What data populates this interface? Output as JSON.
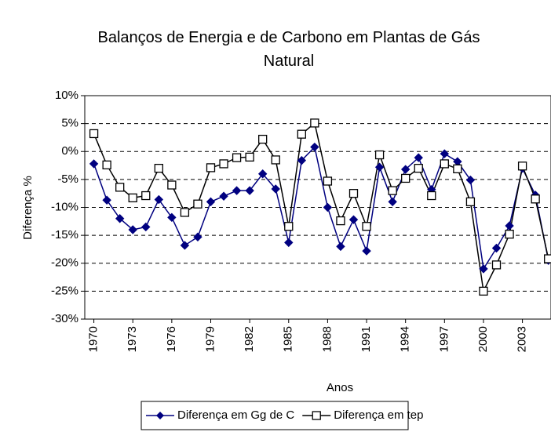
{
  "chart_data": {
    "type": "line",
    "title": "Balanços de Energia e de Carbono em Plantas de Gás Natural",
    "xlabel": "Anos",
    "ylabel": "Diferença %",
    "x": [
      1970,
      1971,
      1972,
      1973,
      1974,
      1975,
      1976,
      1977,
      1978,
      1979,
      1980,
      1981,
      1982,
      1983,
      1984,
      1985,
      1986,
      1987,
      1988,
      1989,
      1990,
      1991,
      1992,
      1993,
      1994,
      1995,
      1996,
      1997,
      1998,
      1999,
      2000,
      2001,
      2002,
      2003,
      2004,
      2005
    ],
    "xlim": [
      1969.3,
      2005.2
    ],
    "xticks": [
      1970,
      1973,
      1976,
      1979,
      1982,
      1985,
      1988,
      1991,
      1994,
      1997,
      2000,
      2003
    ],
    "ylim": [
      -30,
      10
    ],
    "yticks": [
      {
        "value": 10,
        "label": "10%"
      },
      {
        "value": 5,
        "label": "5%"
      },
      {
        "value": 0,
        "label": "0%"
      },
      {
        "value": -5,
        "label": "-5%"
      },
      {
        "value": -10,
        "label": "-10%"
      },
      {
        "value": -15,
        "label": "-15%"
      },
      {
        "value": -20,
        "label": "-20%"
      },
      {
        "value": -25,
        "label": "-25%"
      },
      {
        "value": -30,
        "label": "-30%"
      }
    ],
    "grid": true,
    "series": [
      {
        "name": "Diferença em Gg de C",
        "color": "#000080",
        "marker": "diamond",
        "values": [
          -2.2,
          -8.7,
          -12,
          -14,
          -13.5,
          -8.6,
          -11.8,
          -16.8,
          -15.3,
          -9,
          -8,
          -7,
          -7,
          -4,
          -6.7,
          -16.3,
          -1.6,
          0.8,
          -10,
          -17,
          -12.2,
          -17.8,
          -2.8,
          -9,
          -3.2,
          -1.1,
          -6.8,
          -0.4,
          -1.8,
          -5.1,
          -21,
          -17.3,
          -13.3,
          -3,
          -7.8,
          -19.5
        ]
      },
      {
        "name": "Diferença em tep",
        "color": "#000000",
        "marker": "square",
        "values": [
          3.2,
          -2.4,
          -6.4,
          -8.3,
          -7.9,
          -3,
          -6,
          -10.9,
          -9.4,
          -2.9,
          -2.2,
          -1.1,
          -1,
          2.2,
          -1.5,
          -13.4,
          3.1,
          5.1,
          -5.3,
          -12.4,
          -7.5,
          -13.4,
          -0.6,
          -7,
          -4.8,
          -3,
          -7.9,
          -2.2,
          -3.1,
          -9,
          -25,
          -20.3,
          -14.8,
          -2.6,
          -8.5,
          -19.2
        ]
      }
    ]
  }
}
